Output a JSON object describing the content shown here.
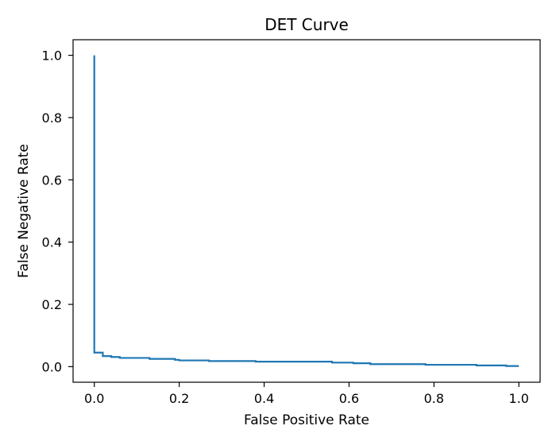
{
  "chart_data": {
    "type": "line",
    "title": "DET Curve",
    "xlabel": "False Positive Rate",
    "ylabel": "False Negative Rate",
    "xlim": [
      -0.05,
      1.05
    ],
    "ylim": [
      -0.05,
      1.05
    ],
    "xticks": [
      0.0,
      0.2,
      0.4,
      0.6,
      0.8,
      1.0
    ],
    "yticks": [
      0.0,
      0.2,
      0.4,
      0.6,
      0.8,
      1.0
    ],
    "xtick_labels": [
      "0.0",
      "0.2",
      "0.4",
      "0.6",
      "0.8",
      "1.0"
    ],
    "ytick_labels": [
      "0.0",
      "0.2",
      "0.4",
      "0.6",
      "0.8",
      "1.0"
    ],
    "grid": false,
    "line_style": "step",
    "colors": {
      "series": "#1f77b4",
      "axes": "#000000"
    },
    "series": [
      {
        "x": [
          0.0,
          0.0,
          0.02,
          0.02,
          0.04,
          0.04,
          0.06,
          0.06,
          0.13,
          0.13,
          0.19,
          0.19,
          0.2,
          0.2,
          0.27,
          0.27,
          0.38,
          0.38,
          0.56,
          0.56,
          0.61,
          0.61,
          0.65,
          0.65,
          0.78,
          0.78,
          0.9,
          0.9,
          0.97,
          0.97,
          1.0
        ],
        "y": [
          1.0,
          0.045,
          0.045,
          0.034,
          0.034,
          0.031,
          0.031,
          0.028,
          0.028,
          0.025,
          0.025,
          0.022,
          0.022,
          0.02,
          0.02,
          0.018,
          0.018,
          0.016,
          0.016,
          0.013,
          0.013,
          0.011,
          0.011,
          0.008,
          0.008,
          0.006,
          0.006,
          0.004,
          0.004,
          0.002,
          0.002
        ]
      }
    ]
  }
}
